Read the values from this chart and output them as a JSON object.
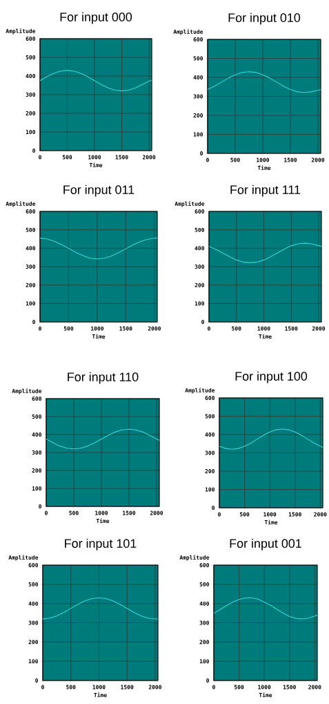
{
  "chart_data": [
    {
      "type": "line",
      "title": "For input 000",
      "xlabel": "Time",
      "ylabel": "Amplitude",
      "xlim": [
        0,
        2050
      ],
      "ylim": [
        0,
        600
      ],
      "xticks": [
        0,
        500,
        1000,
        1500,
        2000
      ],
      "yticks": [
        0,
        100,
        200,
        300,
        400,
        500,
        600
      ],
      "grid": true,
      "x": [
        0,
        125,
        250,
        375,
        500,
        625,
        750,
        875,
        1000,
        1125,
        1250,
        1375,
        1500,
        1625,
        1750,
        1875,
        2000,
        2050
      ],
      "series": [
        {
          "color": "#33d6d6",
          "values": [
            375,
            396,
            414,
            426,
            430,
            426,
            414,
            396,
            375,
            354,
            336,
            324,
            320,
            324,
            336,
            354,
            372,
            378
          ]
        }
      ]
    },
    {
      "type": "line",
      "title": "For input 010",
      "xlabel": "Time",
      "ylabel": "Amplitude",
      "xlim": [
        0,
        2050
      ],
      "ylim": [
        0,
        600
      ],
      "xticks": [
        0,
        500,
        1000,
        1500,
        2000
      ],
      "yticks": [
        0,
        100,
        200,
        300,
        400,
        500,
        600
      ],
      "grid": true,
      "x": [
        0,
        125,
        250,
        375,
        500,
        625,
        750,
        875,
        1000,
        1125,
        1250,
        1375,
        1500,
        1625,
        1750,
        1875,
        2000,
        2050
      ],
      "series": [
        {
          "color": "#33d6d6",
          "values": [
            336,
            354,
            375,
            396,
            414,
            426,
            430,
            426,
            414,
            396,
            375,
            354,
            336,
            324,
            320,
            324,
            332,
            336
          ]
        }
      ]
    },
    {
      "type": "line",
      "title": "For input 011",
      "xlabel": "Time",
      "ylabel": "Amplitude",
      "xlim": [
        0,
        2050
      ],
      "ylim": [
        0,
        600
      ],
      "xticks": [
        0,
        500,
        1000,
        1500,
        2000
      ],
      "yticks": [
        0,
        100,
        200,
        300,
        400,
        500,
        600
      ],
      "grid": true,
      "x": [
        0,
        125,
        250,
        375,
        500,
        625,
        750,
        875,
        1000,
        1125,
        1250,
        1375,
        1500,
        1625,
        1750,
        1875,
        2000,
        2050
      ],
      "series": [
        {
          "color": "#33d6d6",
          "values": [
            455,
            450,
            438,
            420,
            399,
            378,
            360,
            346,
            342,
            346,
            358,
            376,
            397,
            418,
            436,
            448,
            455,
            455
          ]
        }
      ]
    },
    {
      "type": "line",
      "title": "For input 111",
      "xlabel": "Time",
      "ylabel": "Amplitude",
      "xlim": [
        0,
        2050
      ],
      "ylim": [
        0,
        600
      ],
      "xticks": [
        0,
        500,
        1000,
        1500,
        2000
      ],
      "yticks": [
        0,
        100,
        200,
        300,
        400,
        500,
        600
      ],
      "grid": true,
      "x": [
        0,
        125,
        250,
        375,
        500,
        625,
        750,
        875,
        1000,
        1125,
        1250,
        1375,
        1500,
        1625,
        1750,
        1875,
        2000,
        2050
      ],
      "series": [
        {
          "color": "#33d6d6",
          "values": [
            410,
            394,
            374,
            354,
            336,
            325,
            322,
            325,
            336,
            354,
            375,
            396,
            414,
            424,
            428,
            424,
            414,
            410
          ]
        }
      ]
    },
    {
      "type": "line",
      "title": "For input 110",
      "xlabel": "Time",
      "ylabel": "Amplitude",
      "xlim": [
        0,
        2050
      ],
      "ylim": [
        0,
        600
      ],
      "xticks": [
        0,
        500,
        1000,
        1500,
        2000
      ],
      "yticks": [
        0,
        100,
        200,
        300,
        400,
        500,
        600
      ],
      "grid": true,
      "x": [
        0,
        125,
        250,
        375,
        500,
        625,
        750,
        875,
        1000,
        1125,
        1250,
        1375,
        1500,
        1625,
        1750,
        1875,
        2000,
        2050
      ],
      "series": [
        {
          "color": "#33d6d6",
          "values": [
            375,
            354,
            336,
            324,
            320,
            324,
            336,
            354,
            375,
            396,
            414,
            426,
            430,
            426,
            414,
            396,
            375,
            368
          ]
        }
      ]
    },
    {
      "type": "line",
      "title": "For input 100",
      "xlabel": "Time",
      "ylabel": "Amplitude",
      "xlim": [
        0,
        2050
      ],
      "ylim": [
        0,
        600
      ],
      "xticks": [
        0,
        500,
        1000,
        1500,
        2000
      ],
      "yticks": [
        0,
        100,
        200,
        300,
        400,
        500,
        600
      ],
      "grid": true,
      "x": [
        0,
        125,
        250,
        375,
        500,
        625,
        750,
        875,
        1000,
        1125,
        1250,
        1375,
        1500,
        1625,
        1750,
        1875,
        2000,
        2050
      ],
      "series": [
        {
          "color": "#33d6d6",
          "values": [
            336,
            324,
            320,
            324,
            336,
            354,
            375,
            396,
            414,
            426,
            430,
            426,
            414,
            396,
            375,
            354,
            336,
            330
          ]
        }
      ]
    },
    {
      "type": "line",
      "title": "For input 101",
      "xlabel": "Time",
      "ylabel": "Amplitude",
      "xlim": [
        0,
        2050
      ],
      "ylim": [
        0,
        600
      ],
      "xticks": [
        0,
        500,
        1000,
        1500,
        2000
      ],
      "yticks": [
        0,
        100,
        200,
        300,
        400,
        500,
        600
      ],
      "grid": true,
      "x": [
        0,
        125,
        250,
        375,
        500,
        625,
        750,
        875,
        1000,
        1125,
        1250,
        1375,
        1500,
        1625,
        1750,
        1875,
        2000,
        2050
      ],
      "series": [
        {
          "color": "#33d6d6",
          "values": [
            320,
            324,
            336,
            354,
            375,
            396,
            414,
            426,
            430,
            426,
            414,
            396,
            375,
            354,
            336,
            324,
            320,
            320
          ]
        }
      ]
    },
    {
      "type": "line",
      "title": "For input 001",
      "xlabel": "Time",
      "ylabel": "Amplitude",
      "xlim": [
        0,
        2050
      ],
      "ylim": [
        0,
        600
      ],
      "xticks": [
        0,
        500,
        1000,
        1500,
        2000
      ],
      "yticks": [
        0,
        100,
        200,
        300,
        400,
        500,
        600
      ],
      "grid": true,
      "x": [
        0,
        125,
        250,
        375,
        500,
        625,
        750,
        875,
        1000,
        1125,
        1250,
        1375,
        1500,
        1625,
        1750,
        1875,
        2000,
        2050
      ],
      "series": [
        {
          "color": "#33d6d6",
          "values": [
            349,
            369,
            390,
            408,
            421,
            429,
            430,
            423,
            408,
            391,
            370,
            350,
            333,
            323,
            320,
            324,
            335,
            341
          ]
        }
      ]
    }
  ]
}
